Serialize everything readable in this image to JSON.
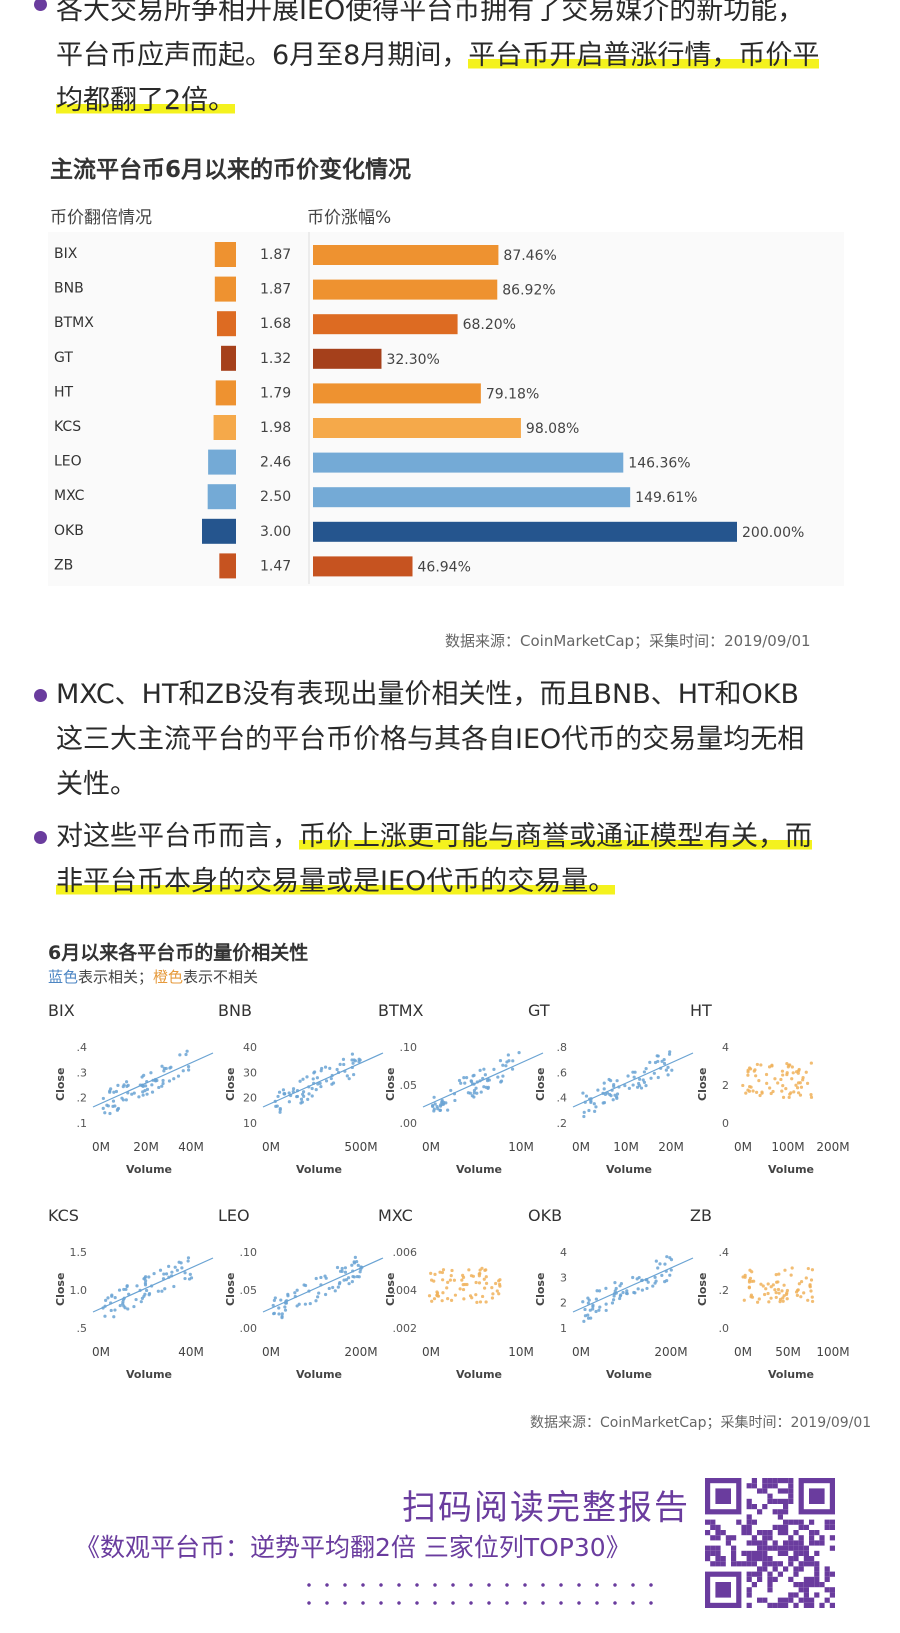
{
  "intro": {
    "line1": "各大交易所争相开展IEO使得平台币拥有了交易媒介的新功能，",
    "line2_plain": "平台币应声而起。6月至8月期间，",
    "line2_hl": "平台币开启普涨行情，币价平",
    "line3_hl": "均都翻了2倍。"
  },
  "chart1": {
    "title": "主流平台币6月以来的币价变化情况",
    "col_left": "币价翻倍情况",
    "col_right": "币价涨幅%",
    "source": "数据来源：CoinMarketCap；采集时间：2019/09/01"
  },
  "bullet1": {
    "line1": "MXC、HT和ZB没有表现出量价相关性，而且BNB、HT和OKB",
    "line2": "这三大主流平台的平台币价格与其各自IEO代币的交易量均无相",
    "line3": "关性。"
  },
  "bullet2": {
    "line1_plain": "对这些平台币而言，",
    "line1_hl": "币价上涨更可能与商誉或通证模型有关，而",
    "line2_hl": "非平台币本身的交易量或是IEO代币的交易量。"
  },
  "chart2": {
    "title": "6月以来各平台币的量价相关性",
    "legend_blue": "蓝色",
    "legend_mid": "表示相关；",
    "legend_orange": "橙色",
    "legend_end": "表示不相关",
    "source": "数据来源：CoinMarketCap；采集时间：2019/09/01",
    "x_axis_label": "Volume",
    "y_axis_label": "Close"
  },
  "footer": {
    "cta": "扫码阅读完整报告",
    "report": "《数观平台币：逆势平均翻2倍 三家位列TOP30》"
  },
  "colors": {
    "orange": "#ee9230",
    "light_orange": "#f5a94a",
    "dark_orange": "#dd6b22",
    "red_brown": "#b04a1c",
    "rust": "#c65320",
    "light_blue": "#74aad6",
    "dark_blue": "#25558e",
    "purple": "#6a3c9e"
  },
  "chart_data": [
    {
      "type": "bar",
      "title": "主流平台币6月以来的币价变化情况",
      "categories": [
        "BIX",
        "BNB",
        "BTMX",
        "GT",
        "HT",
        "KCS",
        "LEO",
        "MXC",
        "OKB",
        "ZB"
      ],
      "series": [
        {
          "name": "币价翻倍情况",
          "values": [
            1.87,
            1.87,
            1.68,
            1.32,
            1.79,
            1.98,
            2.46,
            2.5,
            3.0,
            1.47
          ]
        },
        {
          "name": "币价涨幅%",
          "values": [
            87.46,
            86.92,
            68.2,
            32.3,
            79.18,
            98.08,
            146.36,
            149.61,
            200.0,
            46.94
          ],
          "labels": [
            "87.46%",
            "86.92%",
            "68.20%",
            "32.30%",
            "79.18%",
            "98.08%",
            "146.36%",
            "149.61%",
            "200.00%",
            "46.94%"
          ]
        }
      ],
      "bar_colors": [
        "#ee9230",
        "#ee9230",
        "#dd6b22",
        "#a5401b",
        "#ee9230",
        "#f5a94a",
        "#74aad6",
        "#74aad6",
        "#25558e",
        "#c65320"
      ]
    },
    {
      "type": "scatter",
      "title": "6月以来各平台币的量价相关性",
      "xlabel": "Volume",
      "ylabel": "Close",
      "panels": [
        {
          "name": "BIX",
          "correlated": true,
          "xticks": [
            "0M",
            "20M",
            "40M"
          ],
          "yticks": [
            ".4",
            ".3",
            ".2",
            ".1"
          ],
          "ylim": [
            0.05,
            0.42
          ],
          "xlim": [
            0,
            50
          ]
        },
        {
          "name": "BNB",
          "correlated": true,
          "xticks": [
            "0M",
            "500M"
          ],
          "yticks": [
            "40",
            "30",
            "20",
            "10"
          ],
          "ylim": [
            5,
            42
          ],
          "xlim": [
            0,
            900
          ]
        },
        {
          "name": "BTMX",
          "correlated": true,
          "xticks": [
            "0M",
            "10M"
          ],
          "yticks": [
            ".10",
            ".05",
            ".00"
          ],
          "ylim": [
            0,
            0.14
          ],
          "xlim": [
            0,
            15
          ]
        },
        {
          "name": "GT",
          "correlated": true,
          "xticks": [
            "0M",
            "10M",
            "20M"
          ],
          "yticks": [
            ".8",
            ".6",
            ".4",
            ".2"
          ],
          "ylim": [
            0.1,
            0.9
          ],
          "xlim": [
            0,
            25
          ]
        },
        {
          "name": "HT",
          "correlated": false,
          "xticks": [
            "0M",
            "100M",
            "200M"
          ],
          "yticks": [
            "4",
            "2",
            "0"
          ],
          "ylim": [
            -0.5,
            5.5
          ],
          "xlim": [
            0,
            250
          ]
        },
        {
          "name": "KCS",
          "correlated": true,
          "xticks": [
            "0M",
            "40M"
          ],
          "yticks": [
            "1.5",
            "1.0",
            ".5"
          ],
          "ylim": [
            0.3,
            1.9
          ],
          "xlim": [
            0,
            60
          ]
        },
        {
          "name": "LEO",
          "correlated": true,
          "xticks": [
            "0M",
            "200M"
          ],
          "yticks": [
            ".10",
            ".05",
            ".00"
          ],
          "ylim": [
            -0.005,
            0.115
          ],
          "xlim": [
            0,
            350
          ]
        },
        {
          "name": "MXC",
          "correlated": false,
          "xticks": [
            "0M",
            "10M"
          ],
          "yticks": [
            ".006",
            ".004",
            ".002"
          ],
          "ylim": [
            0.0005,
            0.0072
          ],
          "xlim": [
            0,
            15
          ]
        },
        {
          "name": "OKB",
          "correlated": true,
          "xticks": [
            "0M",
            "200M"
          ],
          "yticks": [
            "4",
            "3",
            "2",
            "1"
          ],
          "ylim": [
            0.5,
            4.3
          ],
          "xlim": [
            0,
            400
          ]
        },
        {
          "name": "ZB",
          "correlated": false,
          "xticks": [
            "0M",
            "50M",
            "100M"
          ],
          "yticks": [
            ".4",
            ".2",
            ".0"
          ],
          "ylim": [
            -0.05,
            0.45
          ],
          "xlim": [
            0,
            120
          ]
        }
      ]
    }
  ]
}
